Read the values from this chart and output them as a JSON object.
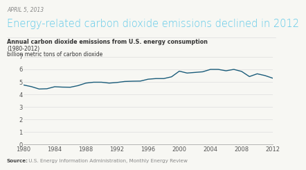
{
  "date": "APRIL 5, 2013",
  "title": "Energy-related carbon dioxide emissions declined in 2012",
  "chart_title_bold": "Annual carbon dioxide emissions from U.S. energy consumption",
  "chart_title_sub1": "(1980-2012)",
  "chart_title_sub2": "billion metric tons of carbon dioxide",
  "source_bold": "Source:",
  "source_rest": " U.S. Energy Information Administration, Monthly Energy Review",
  "years": [
    1980,
    1981,
    1982,
    1983,
    1984,
    1985,
    1986,
    1987,
    1988,
    1989,
    1990,
    1991,
    1992,
    1993,
    1994,
    1995,
    1996,
    1997,
    1998,
    1999,
    2000,
    2001,
    2002,
    2003,
    2004,
    2005,
    2006,
    2007,
    2008,
    2009,
    2010,
    2011,
    2012
  ],
  "values": [
    4.75,
    4.62,
    4.43,
    4.45,
    4.61,
    4.58,
    4.57,
    4.7,
    4.9,
    4.97,
    4.97,
    4.9,
    4.95,
    5.03,
    5.05,
    5.06,
    5.21,
    5.26,
    5.26,
    5.4,
    5.85,
    5.7,
    5.75,
    5.8,
    5.99,
    5.99,
    5.88,
    5.99,
    5.83,
    5.42,
    5.64,
    5.5,
    5.29
  ],
  "line_color": "#1a5c7a",
  "bg_color": "#f7f7f3",
  "ylim": [
    0,
    7
  ],
  "yticks": [
    0,
    1,
    2,
    3,
    4,
    5,
    6,
    7
  ],
  "xticks": [
    1980,
    1984,
    1988,
    1992,
    1996,
    2000,
    2004,
    2008,
    2012
  ],
  "date_color": "#888888",
  "title_color": "#5bc8e8",
  "chart_title_color": "#333333",
  "grid_color": "#dddddd",
  "tick_color": "#555555",
  "source_color": "#888888",
  "spine_color": "#aaaaaa"
}
